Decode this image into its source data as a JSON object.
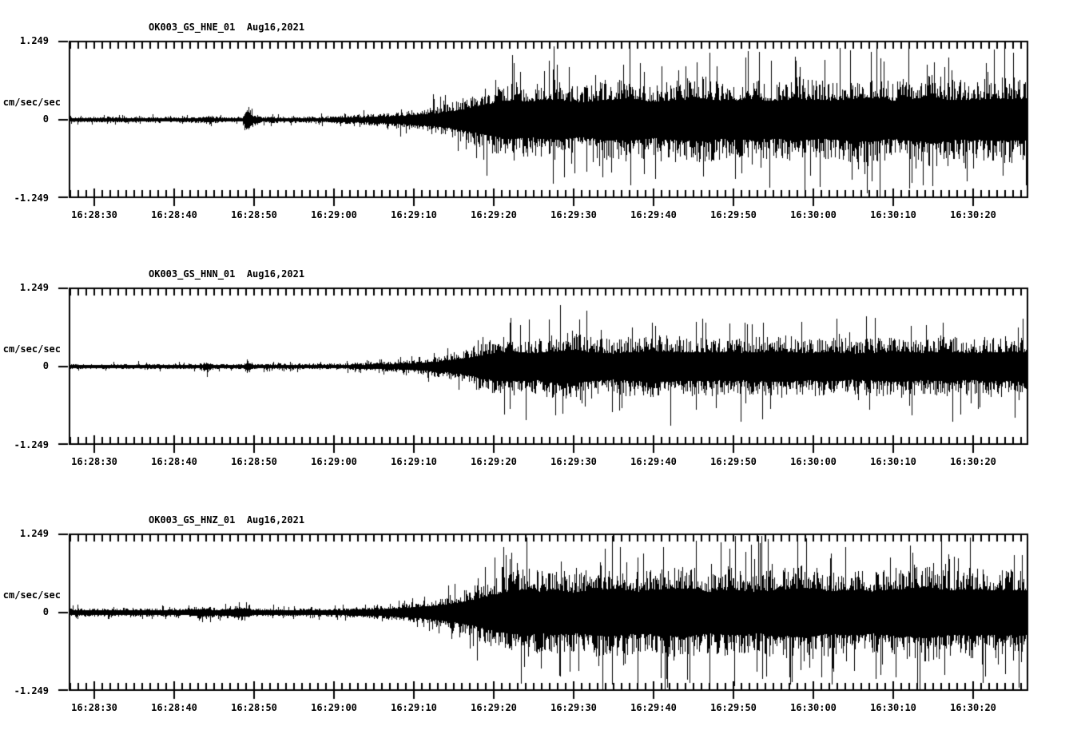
{
  "page": {
    "background": "#ffffff",
    "ink_color": "#000000"
  },
  "chart_data": {
    "type": "line",
    "kind": "seismogram-multichannel",
    "station": "OK003_GS",
    "date_label": "Aug16,2021",
    "units": "cm/sec/sec",
    "ylim": [
      -1.249,
      1.249
    ],
    "y_tick_labels": [
      "1.249",
      "0",
      "-1.249"
    ],
    "y_tick_values": [
      1.249,
      0,
      -1.249
    ],
    "x_minor_tick_seconds": 1,
    "x_major_tick_seconds": 10,
    "x_tick_labels": [
      "16:28:30",
      "16:28:40",
      "16:28:50",
      "16:29:00",
      "16:29:10",
      "16:29:20",
      "16:29:30",
      "16:29:40",
      "16:29:50",
      "16:30:00",
      "16:30:10",
      "16:30:20"
    ],
    "grid": false,
    "legend": "none",
    "channels": [
      {
        "name": "OK003_GS_HNE_01",
        "component": "HNE",
        "title": "OK003_GS_HNE_01  Aug16,2021",
        "envelope_note": "amplitude envelope in cm/sec/sec vs seconds after 16:28:27",
        "envelope": [
          [
            0,
            0.055
          ],
          [
            16,
            0.055
          ],
          [
            17.5,
            0.09
          ],
          [
            18.5,
            0.055
          ],
          [
            21.6,
            0.06
          ],
          [
            22.1,
            0.3
          ],
          [
            23,
            0.12
          ],
          [
            24,
            0.065
          ],
          [
            28,
            0.06
          ],
          [
            31,
            0.065
          ],
          [
            34,
            0.08
          ],
          [
            37,
            0.1
          ],
          [
            40,
            0.13
          ],
          [
            43,
            0.18
          ],
          [
            46,
            0.25
          ],
          [
            48,
            0.33
          ],
          [
            50,
            0.44
          ],
          [
            52,
            0.58
          ],
          [
            55,
            0.72
          ],
          [
            58,
            0.68
          ],
          [
            61,
            0.75
          ],
          [
            64,
            0.66
          ],
          [
            67,
            0.74
          ],
          [
            70,
            0.8
          ],
          [
            73,
            0.68
          ],
          [
            76,
            0.74
          ],
          [
            79,
            0.82
          ],
          [
            82,
            0.72
          ],
          [
            85,
            0.76
          ],
          [
            88,
            0.7
          ],
          [
            91,
            0.8
          ],
          [
            94,
            0.72
          ],
          [
            97,
            0.76
          ],
          [
            100,
            0.84
          ],
          [
            103,
            0.72
          ],
          [
            106,
            0.8
          ],
          [
            108,
            0.9
          ],
          [
            110,
            0.74
          ],
          [
            113,
            0.76
          ],
          [
            116,
            0.8
          ],
          [
            120,
            0.78
          ]
        ]
      },
      {
        "name": "OK003_GS_HNN_01",
        "component": "HNN",
        "title": "OK003_GS_HNN_01  Aug16,2021",
        "envelope_note": "amplitude envelope in cm/sec/sec vs seconds after 16:28:27",
        "envelope": [
          [
            0,
            0.05
          ],
          [
            16,
            0.05
          ],
          [
            17.3,
            0.11
          ],
          [
            18,
            0.05
          ],
          [
            21.8,
            0.055
          ],
          [
            22.2,
            0.14
          ],
          [
            23,
            0.06
          ],
          [
            30,
            0.055
          ],
          [
            34,
            0.065
          ],
          [
            37,
            0.08
          ],
          [
            40,
            0.1
          ],
          [
            43,
            0.13
          ],
          [
            45,
            0.17
          ],
          [
            47,
            0.22
          ],
          [
            49,
            0.3
          ],
          [
            51,
            0.42
          ],
          [
            53,
            0.52
          ],
          [
            55,
            0.58
          ],
          [
            58,
            0.54
          ],
          [
            61,
            0.6
          ],
          [
            63,
            0.68
          ],
          [
            65,
            0.58
          ],
          [
            68,
            0.52
          ],
          [
            71,
            0.58
          ],
          [
            74,
            0.62
          ],
          [
            77,
            0.55
          ],
          [
            80,
            0.58
          ],
          [
            83,
            0.52
          ],
          [
            86,
            0.56
          ],
          [
            89,
            0.6
          ],
          [
            92,
            0.54
          ],
          [
            95,
            0.58
          ],
          [
            98,
            0.52
          ],
          [
            101,
            0.56
          ],
          [
            104,
            0.6
          ],
          [
            107,
            0.54
          ],
          [
            110,
            0.58
          ],
          [
            113,
            0.54
          ],
          [
            116,
            0.58
          ],
          [
            120,
            0.56
          ]
        ]
      },
      {
        "name": "OK003_GS_HNZ_01",
        "component": "HNZ",
        "title": "OK003_GS_HNZ_01  Aug16,2021",
        "envelope_note": "amplitude envelope in cm/sec/sec vs seconds after 16:28:27",
        "envelope": [
          [
            0,
            0.075
          ],
          [
            14,
            0.075
          ],
          [
            17.2,
            0.12
          ],
          [
            18,
            0.08
          ],
          [
            22.2,
            0.14
          ],
          [
            23,
            0.08
          ],
          [
            26,
            0.07
          ],
          [
            30,
            0.075
          ],
          [
            33,
            0.08
          ],
          [
            36,
            0.1
          ],
          [
            39,
            0.12
          ],
          [
            42,
            0.16
          ],
          [
            45,
            0.22
          ],
          [
            47,
            0.28
          ],
          [
            49,
            0.36
          ],
          [
            51,
            0.48
          ],
          [
            53,
            0.62
          ],
          [
            55,
            0.72
          ],
          [
            57,
            0.8
          ],
          [
            59,
            0.72
          ],
          [
            61,
            0.78
          ],
          [
            63,
            0.7
          ],
          [
            65,
            0.76
          ],
          [
            68,
            0.82
          ],
          [
            71,
            0.72
          ],
          [
            74,
            0.78
          ],
          [
            77,
            0.84
          ],
          [
            80,
            0.72
          ],
          [
            83,
            0.78
          ],
          [
            86,
            0.72
          ],
          [
            89,
            0.8
          ],
          [
            92,
            0.86
          ],
          [
            95,
            0.74
          ],
          [
            98,
            0.78
          ],
          [
            101,
            0.72
          ],
          [
            104,
            0.8
          ],
          [
            107,
            0.88
          ],
          [
            110,
            0.76
          ],
          [
            113,
            0.8
          ],
          [
            116,
            0.76
          ],
          [
            120,
            0.78
          ]
        ]
      }
    ]
  }
}
